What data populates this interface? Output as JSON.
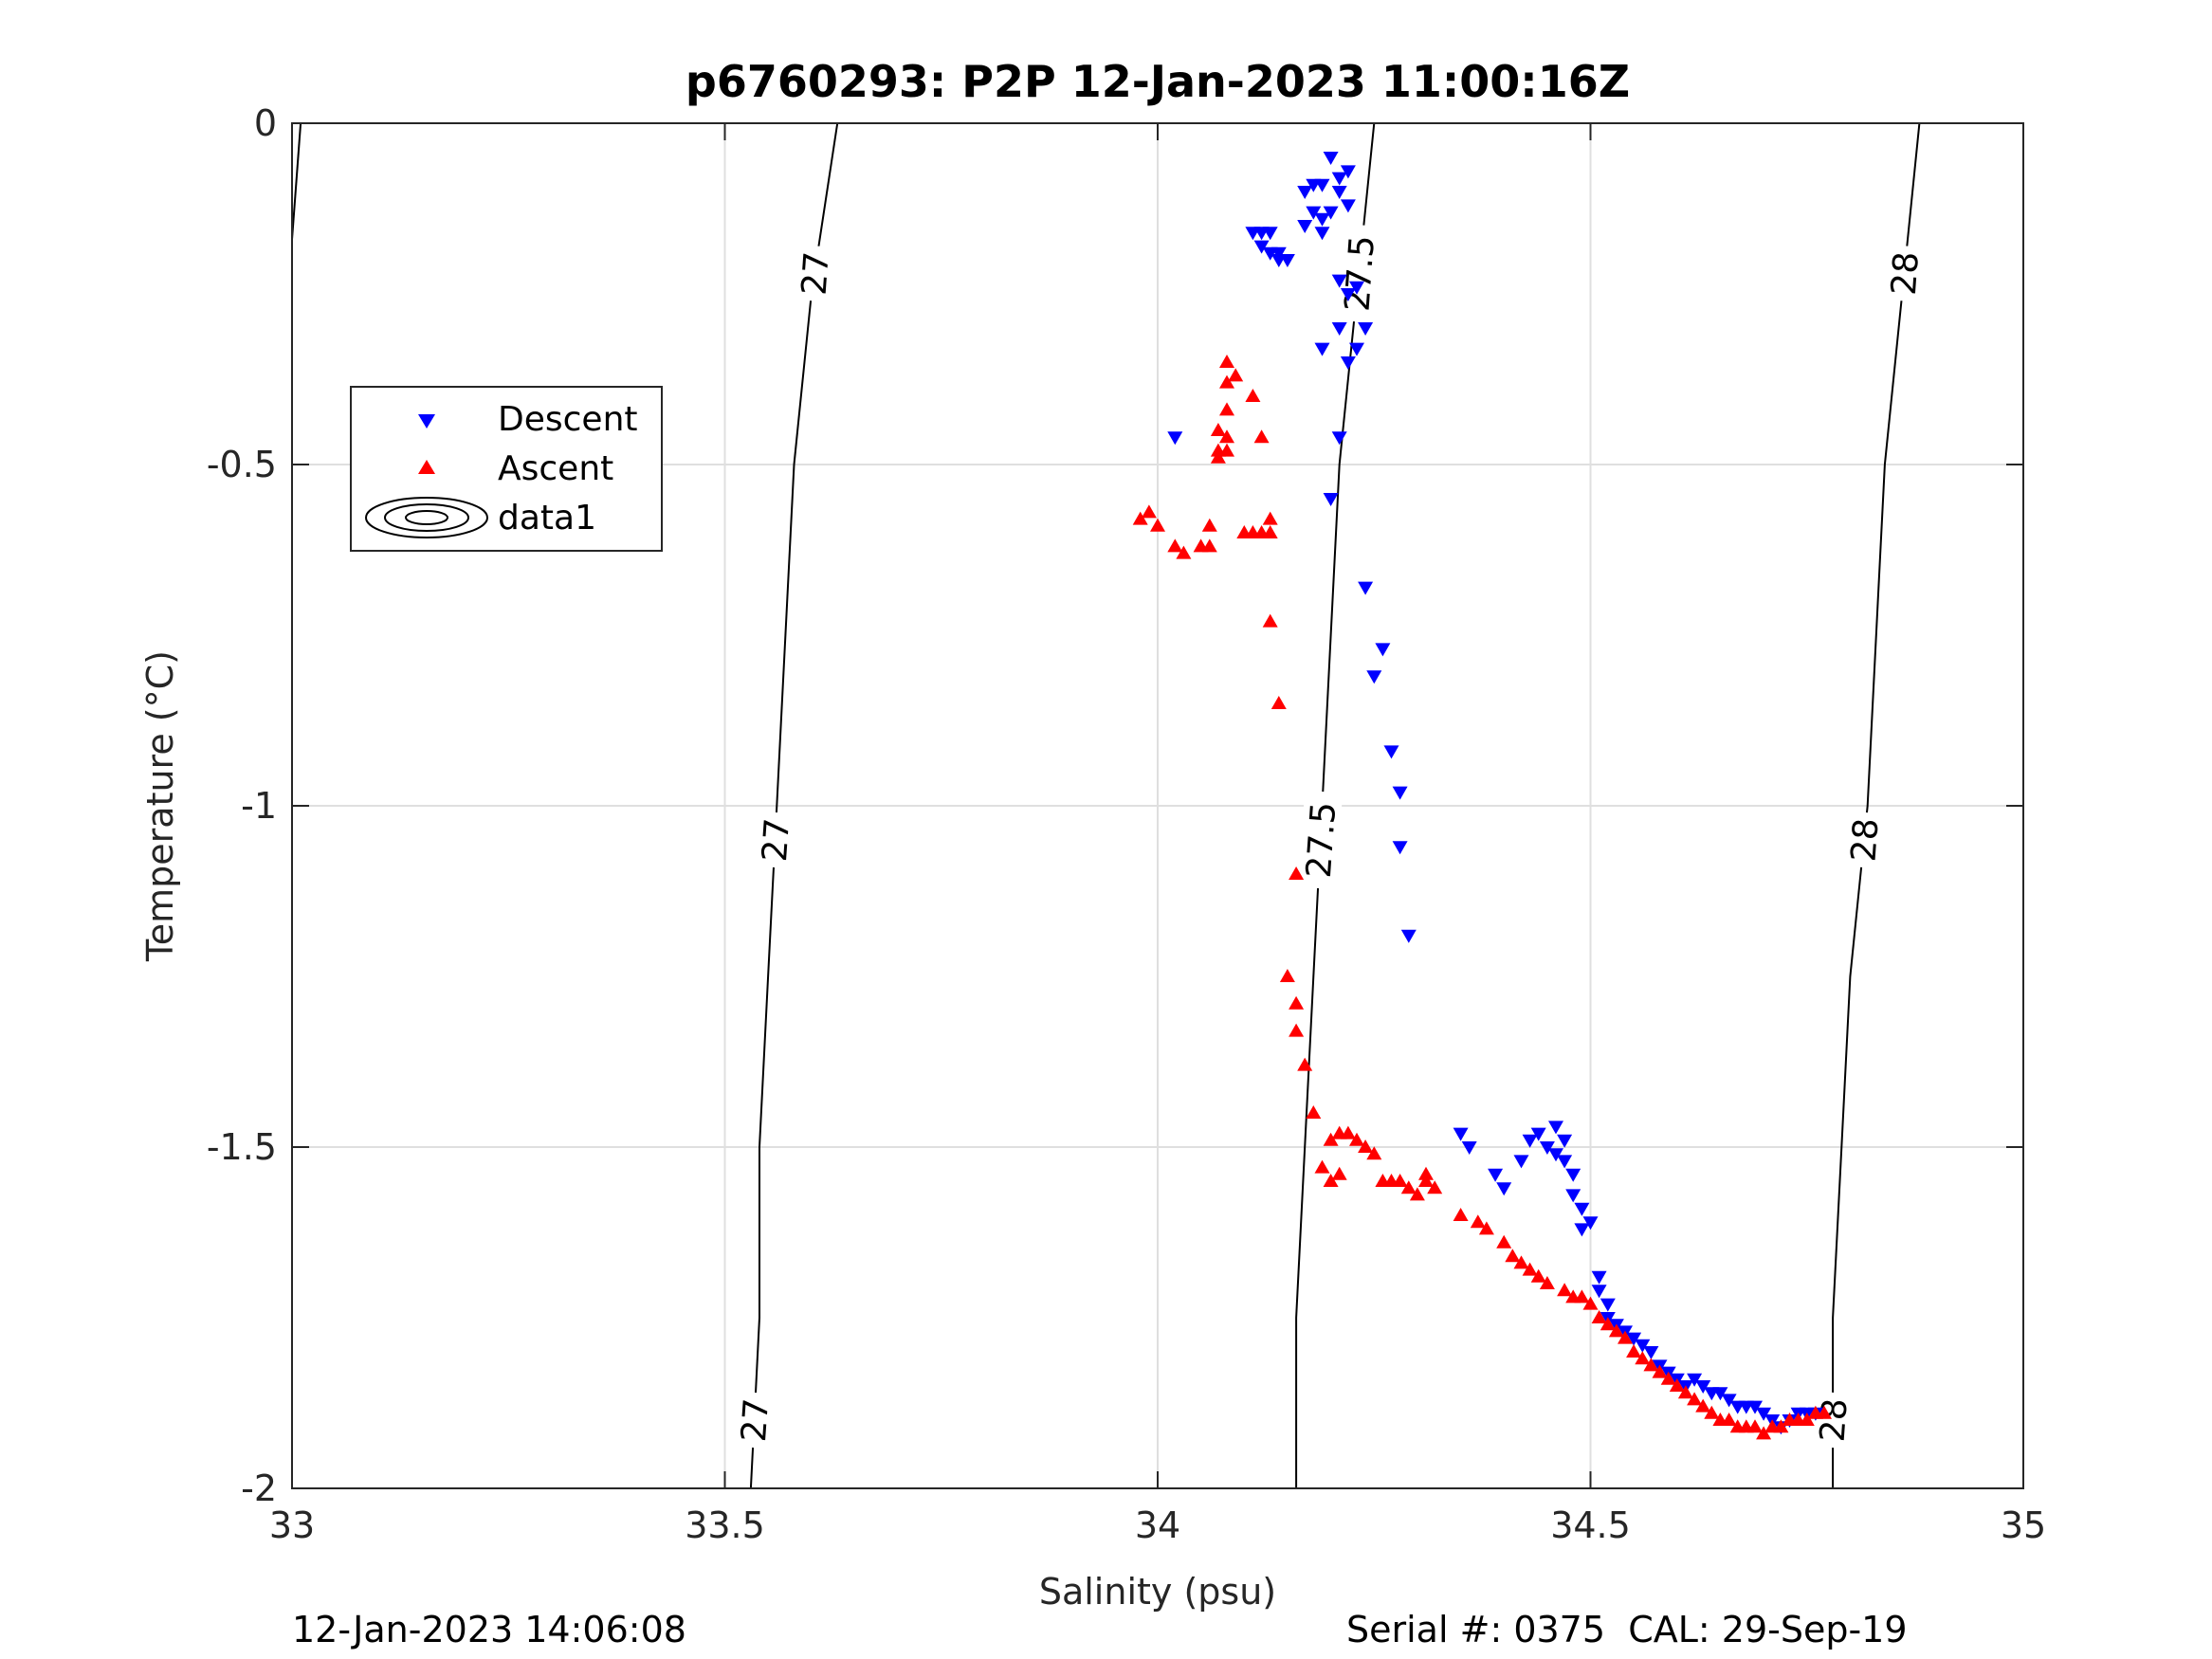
{
  "chart_data": {
    "type": "scatter",
    "title": "p6760293: P2P 12-Jan-2023 11:00:16Z",
    "xlabel": "Salinity (psu)",
    "ylabel": "Temperature (°C)",
    "xlim": [
      33,
      35
    ],
    "ylim": [
      -2,
      0
    ],
    "x_ticks": [
      33,
      33.5,
      34,
      34.5,
      35
    ],
    "x_tick_labels": [
      "33",
      "33.5",
      "34",
      "34.5",
      "35"
    ],
    "y_ticks": [
      0,
      -0.5,
      -1,
      -1.5,
      -2
    ],
    "y_tick_labels": [
      "0",
      "-0.5",
      "-1",
      "-1.5",
      "-2"
    ],
    "grid": true,
    "legend": {
      "position": "upper-left",
      "entries": [
        "Descent",
        "Ascent",
        "data1"
      ]
    },
    "series": [
      {
        "name": "Descent",
        "marker": "triangle-down",
        "color": "#0000ff",
        "points": [
          [
            34.2,
            -0.05
          ],
          [
            34.21,
            -0.08
          ],
          [
            34.22,
            -0.07
          ],
          [
            34.19,
            -0.09
          ],
          [
            34.21,
            -0.1
          ],
          [
            34.17,
            -0.1
          ],
          [
            34.18,
            -0.09
          ],
          [
            34.2,
            -0.13
          ],
          [
            34.22,
            -0.12
          ],
          [
            34.19,
            -0.14
          ],
          [
            34.18,
            -0.13
          ],
          [
            34.17,
            -0.15
          ],
          [
            34.19,
            -0.16
          ],
          [
            34.11,
            -0.16
          ],
          [
            34.12,
            -0.16
          ],
          [
            34.13,
            -0.16
          ],
          [
            34.12,
            -0.18
          ],
          [
            34.13,
            -0.19
          ],
          [
            34.14,
            -0.2
          ],
          [
            34.15,
            -0.2
          ],
          [
            34.14,
            -0.19
          ],
          [
            34.21,
            -0.23
          ],
          [
            34.22,
            -0.25
          ],
          [
            34.23,
            -0.24
          ],
          [
            34.24,
            -0.3
          ],
          [
            34.21,
            -0.3
          ],
          [
            34.19,
            -0.33
          ],
          [
            34.23,
            -0.33
          ],
          [
            34.22,
            -0.35
          ],
          [
            34.21,
            -0.46
          ],
          [
            34.02,
            -0.46
          ],
          [
            34.2,
            -0.55
          ],
          [
            34.24,
            -0.68
          ],
          [
            34.26,
            -0.77
          ],
          [
            34.25,
            -0.81
          ],
          [
            34.27,
            -0.92
          ],
          [
            34.28,
            -0.98
          ],
          [
            34.28,
            -1.06
          ],
          [
            34.29,
            -1.19
          ],
          [
            34.35,
            -1.48
          ],
          [
            34.36,
            -1.5
          ],
          [
            34.39,
            -1.54
          ],
          [
            34.4,
            -1.56
          ],
          [
            34.42,
            -1.52
          ],
          [
            34.43,
            -1.49
          ],
          [
            34.44,
            -1.48
          ],
          [
            34.45,
            -1.5
          ],
          [
            34.46,
            -1.47
          ],
          [
            34.47,
            -1.49
          ],
          [
            34.46,
            -1.51
          ],
          [
            34.47,
            -1.52
          ],
          [
            34.48,
            -1.54
          ],
          [
            34.48,
            -1.57
          ],
          [
            34.49,
            -1.59
          ],
          [
            34.5,
            -1.61
          ],
          [
            34.49,
            -1.62
          ],
          [
            34.51,
            -1.69
          ],
          [
            34.51,
            -1.71
          ],
          [
            34.52,
            -1.73
          ],
          [
            34.52,
            -1.75
          ],
          [
            34.53,
            -1.76
          ],
          [
            34.54,
            -1.77
          ],
          [
            34.55,
            -1.78
          ],
          [
            34.56,
            -1.79
          ],
          [
            34.57,
            -1.8
          ],
          [
            34.58,
            -1.82
          ],
          [
            34.59,
            -1.83
          ],
          [
            34.6,
            -1.84
          ],
          [
            34.61,
            -1.85
          ],
          [
            34.62,
            -1.84
          ],
          [
            34.63,
            -1.85
          ],
          [
            34.64,
            -1.86
          ],
          [
            34.65,
            -1.86
          ],
          [
            34.66,
            -1.87
          ],
          [
            34.67,
            -1.88
          ],
          [
            34.68,
            -1.88
          ],
          [
            34.69,
            -1.88
          ],
          [
            34.7,
            -1.89
          ],
          [
            34.71,
            -1.9
          ],
          [
            34.72,
            -1.91
          ],
          [
            34.73,
            -1.9
          ],
          [
            34.74,
            -1.89
          ],
          [
            34.75,
            -1.89
          ],
          [
            34.76,
            -1.89
          ]
        ]
      },
      {
        "name": "Ascent",
        "marker": "triangle-up",
        "color": "#ff0000",
        "points": [
          [
            34.08,
            -0.35
          ],
          [
            34.09,
            -0.37
          ],
          [
            34.08,
            -0.38
          ],
          [
            34.11,
            -0.4
          ],
          [
            34.08,
            -0.42
          ],
          [
            34.07,
            -0.45
          ],
          [
            34.08,
            -0.46
          ],
          [
            34.12,
            -0.46
          ],
          [
            34.07,
            -0.48
          ],
          [
            34.08,
            -0.48
          ],
          [
            34.07,
            -0.49
          ],
          [
            33.98,
            -0.58
          ],
          [
            33.99,
            -0.57
          ],
          [
            34.0,
            -0.59
          ],
          [
            34.02,
            -0.62
          ],
          [
            34.03,
            -0.63
          ],
          [
            34.05,
            -0.62
          ],
          [
            34.06,
            -0.62
          ],
          [
            34.06,
            -0.59
          ],
          [
            34.1,
            -0.6
          ],
          [
            34.11,
            -0.6
          ],
          [
            34.12,
            -0.6
          ],
          [
            34.13,
            -0.58
          ],
          [
            34.13,
            -0.6
          ],
          [
            34.13,
            -0.73
          ],
          [
            34.14,
            -0.85
          ],
          [
            34.16,
            -1.1
          ],
          [
            34.15,
            -1.25
          ],
          [
            34.16,
            -1.29
          ],
          [
            34.16,
            -1.33
          ],
          [
            34.17,
            -1.38
          ],
          [
            34.18,
            -1.45
          ],
          [
            34.2,
            -1.49
          ],
          [
            34.21,
            -1.48
          ],
          [
            34.22,
            -1.48
          ],
          [
            34.23,
            -1.49
          ],
          [
            34.24,
            -1.5
          ],
          [
            34.25,
            -1.51
          ],
          [
            34.19,
            -1.53
          ],
          [
            34.2,
            -1.55
          ],
          [
            34.21,
            -1.54
          ],
          [
            34.26,
            -1.55
          ],
          [
            34.27,
            -1.55
          ],
          [
            34.28,
            -1.55
          ],
          [
            34.29,
            -1.56
          ],
          [
            34.3,
            -1.57
          ],
          [
            34.31,
            -1.54
          ],
          [
            34.31,
            -1.55
          ],
          [
            34.32,
            -1.56
          ],
          [
            34.35,
            -1.6
          ],
          [
            34.37,
            -1.61
          ],
          [
            34.38,
            -1.62
          ],
          [
            34.4,
            -1.64
          ],
          [
            34.41,
            -1.66
          ],
          [
            34.42,
            -1.67
          ],
          [
            34.43,
            -1.68
          ],
          [
            34.44,
            -1.69
          ],
          [
            34.45,
            -1.7
          ],
          [
            34.47,
            -1.71
          ],
          [
            34.48,
            -1.72
          ],
          [
            34.49,
            -1.72
          ],
          [
            34.5,
            -1.73
          ],
          [
            34.51,
            -1.75
          ],
          [
            34.52,
            -1.76
          ],
          [
            34.53,
            -1.77
          ],
          [
            34.54,
            -1.78
          ],
          [
            34.55,
            -1.8
          ],
          [
            34.56,
            -1.81
          ],
          [
            34.57,
            -1.82
          ],
          [
            34.58,
            -1.83
          ],
          [
            34.59,
            -1.84
          ],
          [
            34.6,
            -1.85
          ],
          [
            34.61,
            -1.86
          ],
          [
            34.62,
            -1.87
          ],
          [
            34.63,
            -1.88
          ],
          [
            34.64,
            -1.89
          ],
          [
            34.65,
            -1.9
          ],
          [
            34.66,
            -1.9
          ],
          [
            34.67,
            -1.91
          ],
          [
            34.68,
            -1.91
          ],
          [
            34.69,
            -1.91
          ],
          [
            34.7,
            -1.92
          ],
          [
            34.71,
            -1.91
          ],
          [
            34.72,
            -1.91
          ],
          [
            34.73,
            -1.9
          ],
          [
            34.74,
            -1.9
          ],
          [
            34.75,
            -1.9
          ],
          [
            34.76,
            -1.89
          ],
          [
            34.77,
            -1.89
          ]
        ]
      }
    ],
    "contours": [
      {
        "label": "27",
        "points": [
          [
            33.01,
            0
          ],
          [
            33.0,
            -0.17
          ]
        ],
        "labels_at": []
      },
      {
        "label": "27",
        "points": [
          [
            33.63,
            0
          ],
          [
            33.6,
            -0.25
          ],
          [
            33.58,
            -0.5
          ],
          [
            33.57,
            -0.75
          ],
          [
            33.56,
            -1.0
          ],
          [
            33.55,
            -1.25
          ],
          [
            33.54,
            -1.5
          ],
          [
            33.54,
            -1.75
          ],
          [
            33.53,
            -2.0
          ]
        ],
        "labels_at": [
          -0.22,
          -1.05,
          -1.9
        ]
      },
      {
        "label": "27.5",
        "points": [
          [
            34.25,
            0
          ],
          [
            34.23,
            -0.25
          ],
          [
            34.21,
            -0.5
          ],
          [
            34.2,
            -0.75
          ],
          [
            34.19,
            -1.0
          ],
          [
            34.18,
            -1.25
          ],
          [
            34.17,
            -1.5
          ],
          [
            34.16,
            -1.75
          ],
          [
            34.16,
            -2.0
          ]
        ],
        "labels_at": [
          -0.22,
          -1.05
        ]
      },
      {
        "label": "28",
        "points": [
          [
            34.88,
            0
          ],
          [
            34.86,
            -0.25
          ],
          [
            34.84,
            -0.5
          ],
          [
            34.83,
            -0.75
          ],
          [
            34.82,
            -1.0
          ],
          [
            34.8,
            -1.25
          ],
          [
            34.79,
            -1.5
          ],
          [
            34.78,
            -1.75
          ],
          [
            34.78,
            -2.0
          ]
        ],
        "labels_at": [
          -0.22,
          -1.05,
          -1.9
        ]
      }
    ]
  },
  "footer": {
    "left": "12-Jan-2023 14:06:08",
    "right": "Serial #: 0375  CAL: 29-Sep-19"
  }
}
